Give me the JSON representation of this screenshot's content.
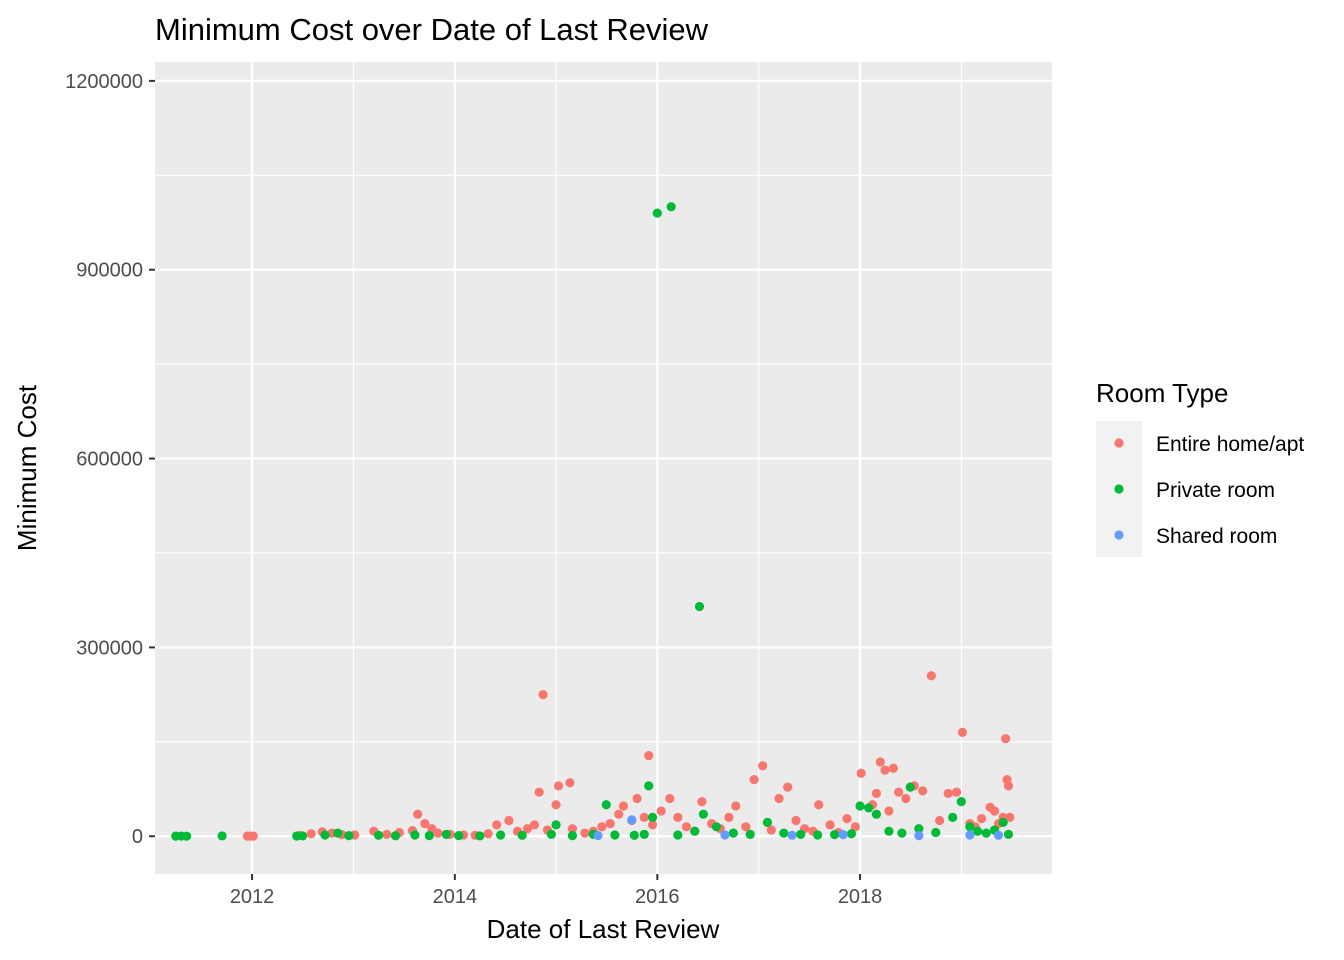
{
  "chart_data": {
    "type": "scatter",
    "title": "Minimum Cost over Date of Last Review",
    "xlabel": "Date of Last Review",
    "ylabel": "Minimum Cost",
    "x_type": "date",
    "xlim": [
      "2011-01-16",
      "2019-11-24"
    ],
    "ylim": [
      -60000,
      1230000
    ],
    "x_ticks": [
      {
        "value": "2012-01-01",
        "label": "2012"
      },
      {
        "value": "2014-01-01",
        "label": "2014"
      },
      {
        "value": "2016-01-01",
        "label": "2016"
      },
      {
        "value": "2018-01-01",
        "label": "2018"
      }
    ],
    "y_ticks": [
      {
        "value": 0,
        "label": "0"
      },
      {
        "value": 300000,
        "label": "300000"
      },
      {
        "value": 600000,
        "label": "600000"
      },
      {
        "value": 900000,
        "label": "900000"
      },
      {
        "value": 1200000,
        "label": "1200000"
      }
    ],
    "grid": true,
    "legend": {
      "title": "Room Type",
      "position": "right"
    },
    "series": [
      {
        "name": "Entire home/apt",
        "color": "#F8766D",
        "points": [
          [
            "2011-12-15",
            200
          ],
          [
            "2011-12-25",
            300
          ],
          [
            "2012-01-05",
            150
          ],
          [
            "2012-06-20",
            1500
          ],
          [
            "2012-08-01",
            4000
          ],
          [
            "2012-09-10",
            7000
          ],
          [
            "2012-10-15",
            5000
          ],
          [
            "2012-11-20",
            2500
          ],
          [
            "2013-01-05",
            2000
          ],
          [
            "2013-03-15",
            8000
          ],
          [
            "2013-05-01",
            3000
          ],
          [
            "2013-06-15",
            6000
          ],
          [
            "2013-08-01",
            9000
          ],
          [
            "2013-08-20",
            35000
          ],
          [
            "2013-09-15",
            20000
          ],
          [
            "2013-10-10",
            12000
          ],
          [
            "2013-11-01",
            5000
          ],
          [
            "2013-12-15",
            3000
          ],
          [
            "2014-02-01",
            2000
          ],
          [
            "2014-03-15",
            1500
          ],
          [
            "2014-05-01",
            4000
          ],
          [
            "2014-06-01",
            18000
          ],
          [
            "2014-07-15",
            25000
          ],
          [
            "2014-08-15",
            8000
          ],
          [
            "2014-09-20",
            12000
          ],
          [
            "2014-10-15",
            18000
          ],
          [
            "2014-11-01",
            70000
          ],
          [
            "2014-11-15",
            225000
          ],
          [
            "2014-12-01",
            10000
          ],
          [
            "2015-01-01",
            50000
          ],
          [
            "2015-01-10",
            80000
          ],
          [
            "2015-02-20",
            85000
          ],
          [
            "2015-03-01",
            12000
          ],
          [
            "2015-04-15",
            5000
          ],
          [
            "2015-05-15",
            8000
          ],
          [
            "2015-06-15",
            15000
          ],
          [
            "2015-07-15",
            20000
          ],
          [
            "2015-08-15",
            35000
          ],
          [
            "2015-09-01",
            48000
          ],
          [
            "2015-10-01",
            25000
          ],
          [
            "2015-10-20",
            60000
          ],
          [
            "2015-11-15",
            30000
          ],
          [
            "2015-12-01",
            128000
          ],
          [
            "2015-12-15",
            18000
          ],
          [
            "2016-01-15",
            40000
          ],
          [
            "2016-02-15",
            60000
          ],
          [
            "2016-03-15",
            30000
          ],
          [
            "2016-04-15",
            15000
          ],
          [
            "2016-05-15",
            8000
          ],
          [
            "2016-06-10",
            55000
          ],
          [
            "2016-07-15",
            20000
          ],
          [
            "2016-08-15",
            12000
          ],
          [
            "2016-09-15",
            30000
          ],
          [
            "2016-10-10",
            48000
          ],
          [
            "2016-11-15",
            15000
          ],
          [
            "2016-12-15",
            90000
          ],
          [
            "2017-01-15",
            112000
          ],
          [
            "2017-02-15",
            10000
          ],
          [
            "2017-03-15",
            60000
          ],
          [
            "2017-04-15",
            78000
          ],
          [
            "2017-05-15",
            25000
          ],
          [
            "2017-06-15",
            12000
          ],
          [
            "2017-07-15",
            8000
          ],
          [
            "2017-08-05",
            50000
          ],
          [
            "2017-09-15",
            18000
          ],
          [
            "2017-10-15",
            6000
          ],
          [
            "2017-11-15",
            28000
          ],
          [
            "2017-12-15",
            15000
          ],
          [
            "2018-01-05",
            100000
          ],
          [
            "2018-02-15",
            50000
          ],
          [
            "2018-03-01",
            68000
          ],
          [
            "2018-03-15",
            118000
          ],
          [
            "2018-04-01",
            105000
          ],
          [
            "2018-04-15",
            40000
          ],
          [
            "2018-05-01",
            108000
          ],
          [
            "2018-05-20",
            70000
          ],
          [
            "2018-06-15",
            60000
          ],
          [
            "2018-07-15",
            80000
          ],
          [
            "2018-08-15",
            72000
          ],
          [
            "2018-09-15",
            255000
          ],
          [
            "2018-10-15",
            25000
          ],
          [
            "2018-11-15",
            68000
          ],
          [
            "2018-12-15",
            70000
          ],
          [
            "2019-01-05",
            165000
          ],
          [
            "2019-02-01",
            20000
          ],
          [
            "2019-02-20",
            15000
          ],
          [
            "2019-03-15",
            28000
          ],
          [
            "2019-04-15",
            46000
          ],
          [
            "2019-05-01",
            40000
          ],
          [
            "2019-05-15",
            20000
          ],
          [
            "2019-06-01",
            30000
          ],
          [
            "2019-06-10",
            155000
          ],
          [
            "2019-06-15",
            90000
          ],
          [
            "2019-06-20",
            80000
          ],
          [
            "2019-06-25",
            30000
          ]
        ]
      },
      {
        "name": "Private room",
        "color": "#00BA38",
        "points": [
          [
            "2011-04-01",
            200
          ],
          [
            "2011-04-20",
            300
          ],
          [
            "2011-05-10",
            100
          ],
          [
            "2011-09-15",
            500
          ],
          [
            "2012-06-10",
            300
          ],
          [
            "2012-07-01",
            500
          ],
          [
            "2012-09-20",
            2000
          ],
          [
            "2012-11-05",
            5000
          ],
          [
            "2012-12-15",
            1000
          ],
          [
            "2013-04-01",
            1500
          ],
          [
            "2013-06-01",
            800
          ],
          [
            "2013-08-10",
            2000
          ],
          [
            "2013-10-01",
            1000
          ],
          [
            "2013-12-01",
            3000
          ],
          [
            "2014-01-15",
            1000
          ],
          [
            "2014-04-01",
            500
          ],
          [
            "2014-06-15",
            2000
          ],
          [
            "2014-09-01",
            1500
          ],
          [
            "2014-12-15",
            3000
          ],
          [
            "2015-01-01",
            18000
          ],
          [
            "2015-03-01",
            1000
          ],
          [
            "2015-05-15",
            3000
          ],
          [
            "2015-07-01",
            50000
          ],
          [
            "2015-08-01",
            2000
          ],
          [
            "2015-10-10",
            1500
          ],
          [
            "2015-11-15",
            3000
          ],
          [
            "2015-12-01",
            80000
          ],
          [
            "2015-12-15",
            30000
          ],
          [
            "2016-01-01",
            990000
          ],
          [
            "2016-02-20",
            1000000
          ],
          [
            "2016-03-15",
            2000
          ],
          [
            "2016-05-15",
            8000
          ],
          [
            "2016-06-01",
            365000
          ],
          [
            "2016-06-15",
            35000
          ],
          [
            "2016-08-01",
            15000
          ],
          [
            "2016-10-01",
            5000
          ],
          [
            "2016-12-01",
            3000
          ],
          [
            "2017-02-01",
            22000
          ],
          [
            "2017-04-01",
            5000
          ],
          [
            "2017-06-01",
            3000
          ],
          [
            "2017-08-01",
            2000
          ],
          [
            "2017-10-01",
            2500
          ],
          [
            "2017-12-01",
            4000
          ],
          [
            "2018-01-01",
            48000
          ],
          [
            "2018-02-01",
            45000
          ],
          [
            "2018-03-01",
            35000
          ],
          [
            "2018-04-15",
            8000
          ],
          [
            "2018-06-01",
            5000
          ],
          [
            "2018-07-01",
            78000
          ],
          [
            "2018-08-01",
            12000
          ],
          [
            "2018-10-01",
            6000
          ],
          [
            "2018-12-01",
            30000
          ],
          [
            "2019-01-01",
            55000
          ],
          [
            "2019-02-01",
            15000
          ],
          [
            "2019-03-01",
            8000
          ],
          [
            "2019-04-01",
            5000
          ],
          [
            "2019-05-01",
            10000
          ],
          [
            "2019-06-01",
            22000
          ],
          [
            "2019-06-20",
            3000
          ]
        ]
      },
      {
        "name": "Shared room",
        "color": "#619CFF",
        "points": [
          [
            "2015-10-01",
            26000
          ],
          [
            "2015-06-01",
            1000
          ],
          [
            "2016-09-01",
            2000
          ],
          [
            "2017-05-01",
            1500
          ],
          [
            "2017-11-01",
            2500
          ],
          [
            "2018-08-01",
            1000
          ],
          [
            "2019-02-01",
            2000
          ],
          [
            "2019-05-15",
            1500
          ]
        ]
      }
    ]
  }
}
